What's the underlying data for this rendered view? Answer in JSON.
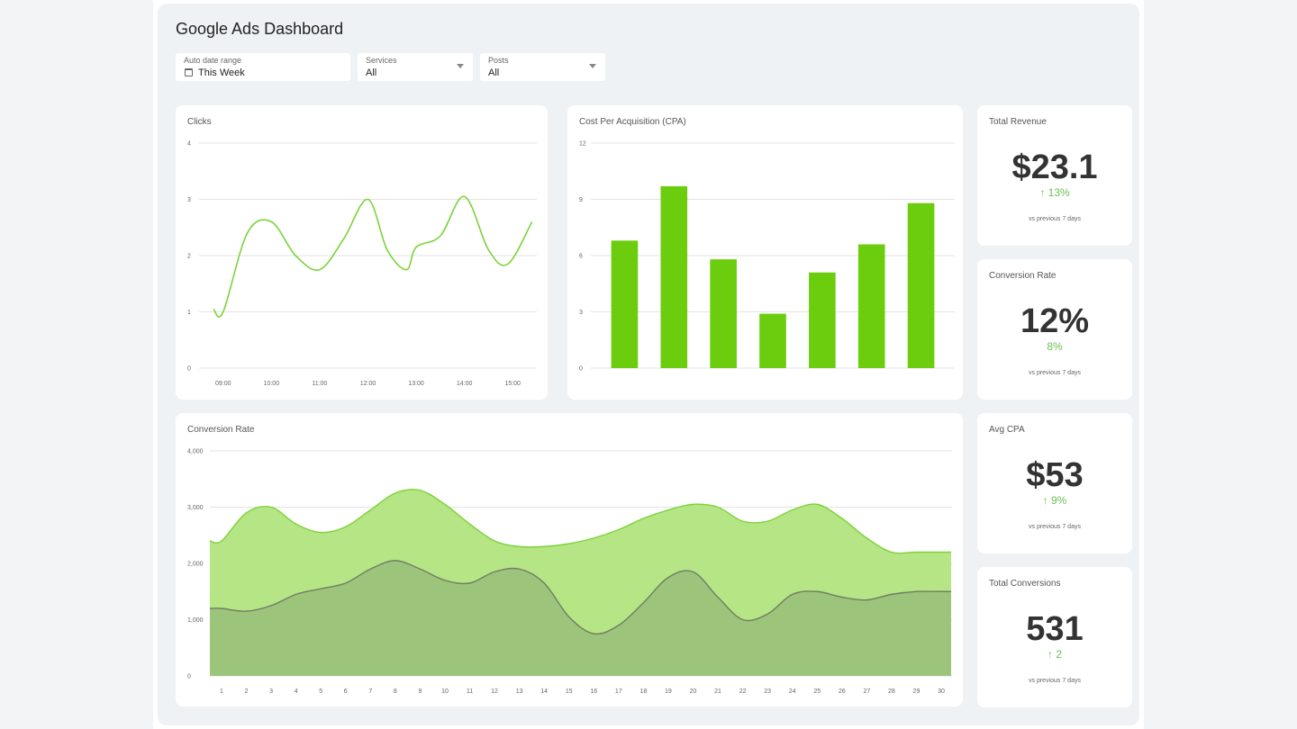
{
  "dashboard": {
    "title": "Google Ads Dashboard",
    "filters": [
      {
        "label": "Auto date range",
        "value": "This Week"
      },
      {
        "label": "Services",
        "value": "All"
      },
      {
        "label": "Posts",
        "value": "All"
      }
    ]
  },
  "colors": {
    "accent": "#6ccd0e",
    "line": "#7bd33a",
    "area_light": "#b5e584",
    "area_dark": "#9dc47b",
    "positive": "#6bbf4e"
  },
  "icons": [
    "calendar-icon",
    "chevron-down-icon",
    "arrow-up-icon"
  ],
  "kpis": [
    {
      "title": "Total Revenue",
      "value": "$23.1",
      "delta": "↑ 13%",
      "note": "vs previous 7 days"
    },
    {
      "title": "Conversion Rate",
      "value": "12%",
      "delta": "8%",
      "note": "vs previous 7 days"
    },
    {
      "title": "Avg CPA",
      "value": "$53",
      "delta": "↑ 9%",
      "note": "vs previous 7 days"
    },
    {
      "title": "Total Conversions",
      "value": "531",
      "delta": "↑ 2",
      "note": "vs previous 7 days"
    }
  ],
  "chart_data": [
    {
      "type": "line",
      "title": "Clicks",
      "x": [
        8.8,
        9.0,
        9.5,
        10.0,
        10.5,
        11.0,
        11.5,
        12.0,
        12.4,
        12.8,
        13.0,
        13.5,
        14.0,
        14.5,
        14.9,
        15.4
      ],
      "y": [
        1.05,
        1.0,
        2.4,
        2.6,
        2.0,
        1.75,
        2.3,
        3.0,
        2.1,
        1.75,
        2.15,
        2.35,
        3.05,
        2.1,
        1.85,
        2.6
      ],
      "xticks": [
        "09:00",
        "10:00",
        "11:00",
        "12:00",
        "13:00",
        "14:00",
        "15:00"
      ],
      "yticks": [
        "0",
        "1",
        "2",
        "3",
        "4"
      ],
      "ylim": [
        0,
        4
      ],
      "grid": true
    },
    {
      "type": "bar",
      "title": "Cost Per Acquisition (CPA)",
      "categories": [
        "",
        "",
        "",
        "",
        "",
        "",
        ""
      ],
      "values": [
        6.8,
        9.7,
        5.8,
        2.9,
        5.1,
        6.6,
        8.8
      ],
      "yticks": [
        "0",
        "3",
        "6",
        "9",
        "12"
      ],
      "ylim": [
        0,
        12
      ],
      "grid": true
    },
    {
      "type": "area",
      "title": "Conversion Rate",
      "categories": [
        "1",
        "2",
        "3",
        "4",
        "5",
        "6",
        "7",
        "8",
        "9",
        "10",
        "11",
        "12",
        "13",
        "14",
        "15",
        "16",
        "17",
        "18",
        "19",
        "20",
        "21",
        "22",
        "23",
        "24",
        "25",
        "26",
        "27",
        "28",
        "29",
        "30"
      ],
      "series": [
        {
          "values": [
            2400,
            2900,
            3000,
            2700,
            2550,
            2650,
            2950,
            3250,
            3300,
            3050,
            2700,
            2400,
            2300,
            2300,
            2350,
            2450,
            2600,
            2800,
            2950,
            3050,
            3000,
            2750,
            2750,
            2950,
            3050,
            2800,
            2450,
            2200,
            2200,
            2200
          ]
        },
        {
          "values": [
            1200,
            1150,
            1250,
            1450,
            1550,
            1650,
            1900,
            2050,
            1900,
            1700,
            1650,
            1850,
            1900,
            1650,
            1050,
            750,
            900,
            1300,
            1750,
            1850,
            1400,
            1000,
            1100,
            1450,
            1500,
            1400,
            1350,
            1450,
            1500,
            1500
          ]
        }
      ],
      "yticks": [
        "0",
        "1,000",
        "2,000",
        "3,000",
        "4,000"
      ],
      "ylim": [
        0,
        4000
      ],
      "grid": true
    }
  ]
}
